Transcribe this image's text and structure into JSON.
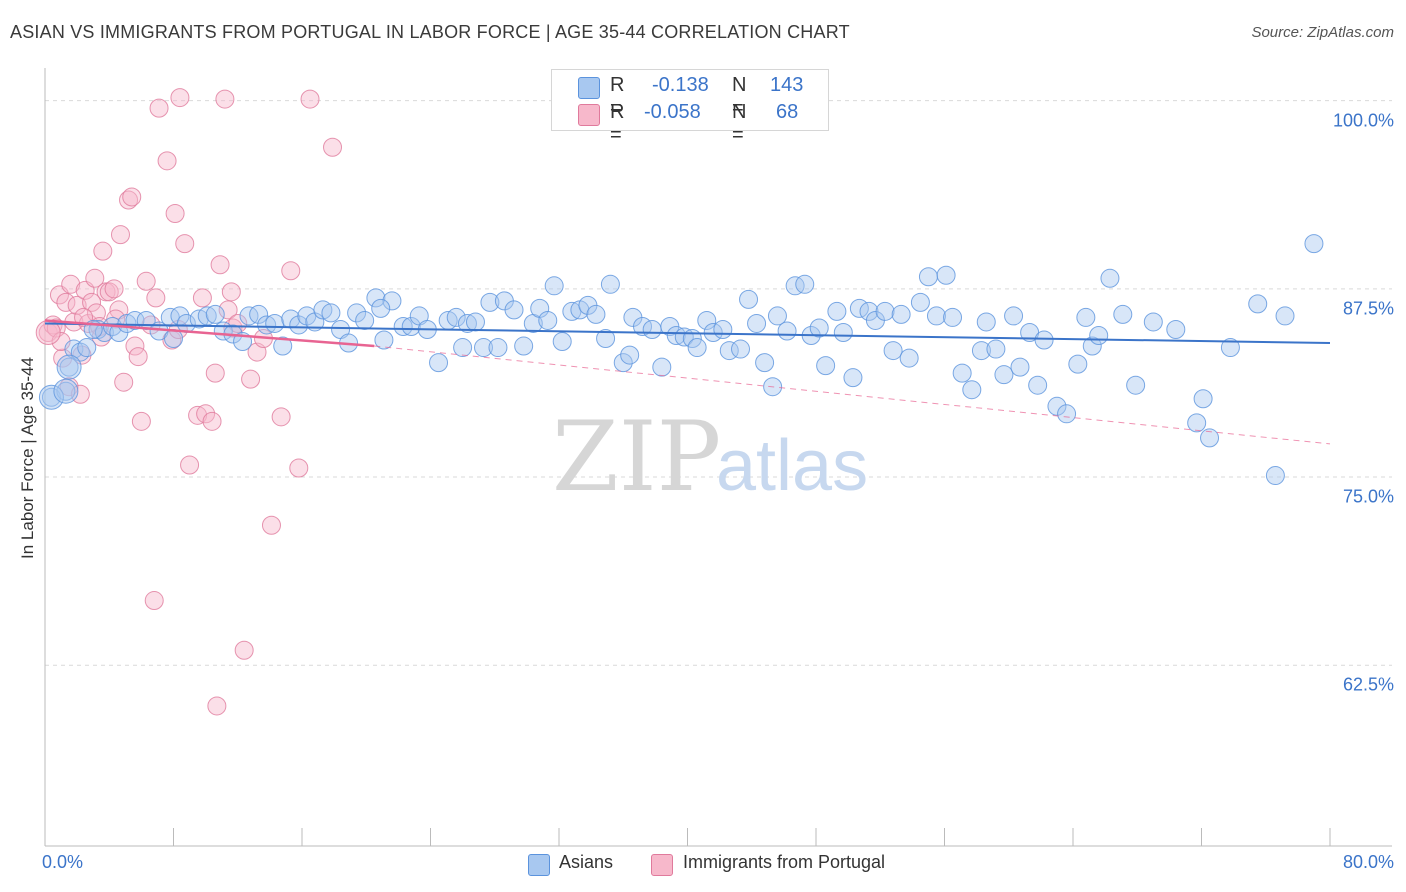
{
  "header": {
    "title": "ASIAN VS IMMIGRANTS FROM PORTUGAL IN LABOR FORCE | AGE 35-44 CORRELATION CHART",
    "source": "Source: ZipAtlas.com"
  },
  "stats_box": {
    "rows": [
      {
        "r_label": "R =",
        "r_value": "-0.138",
        "n_label": "N =",
        "n_value": "143",
        "color": "#a8c8f0"
      },
      {
        "r_label": "R =",
        "r_value": "-0.058",
        "n_label": "N =",
        "n_value": "68",
        "color": "#f7b8cb"
      }
    ]
  },
  "legend": {
    "items": [
      {
        "label": "Asians",
        "color": "#a8c8f0"
      },
      {
        "label": "Immigrants from Portugal",
        "color": "#f7b8cb"
      }
    ]
  },
  "watermark": {
    "zip": "ZIP",
    "atlas": "atlas"
  },
  "chart_data": {
    "type": "scatter",
    "title": "ASIAN VS IMMIGRANTS FROM PORTUGAL IN LABOR FORCE | AGE 35-44 CORRELATION CHART",
    "xlabel": "",
    "ylabel": "In Labor Force | Age 35-44",
    "xlim": [
      0,
      80
    ],
    "ylim": [
      50.5,
      101.5
    ],
    "x_tick_labels": [
      {
        "value": 0,
        "label": "0.0%"
      },
      {
        "value": 80,
        "label": "80.0%"
      }
    ],
    "y_tick_labels": [
      {
        "value": 100,
        "label": "100.0%"
      },
      {
        "value": 87.5,
        "label": "87.5%"
      },
      {
        "value": 75,
        "label": "75.0%"
      },
      {
        "value": 62.5,
        "label": "62.5%"
      }
    ],
    "grid": true,
    "series": [
      {
        "name": "Asians",
        "color": "#a8c8f0",
        "stroke": "#5b93dd",
        "line_color": "#3b74c9",
        "trend": {
          "x": [
            0,
            80
          ],
          "y": [
            85.2,
            83.9
          ],
          "dashed": false
        },
        "points": [
          [
            0.4,
            80.3
          ],
          [
            1.3,
            80.7
          ],
          [
            1.5,
            82.3
          ],
          [
            1.8,
            83.5
          ],
          [
            2.2,
            83.3
          ],
          [
            2.6,
            83.6
          ],
          [
            3.3,
            84.8
          ],
          [
            3.7,
            84.6
          ],
          [
            4.2,
            85.0
          ],
          [
            4.6,
            84.6
          ],
          [
            5.1,
            85.2
          ],
          [
            5.6,
            85.4
          ],
          [
            6.3,
            85.4
          ],
          [
            7.1,
            84.7
          ],
          [
            7.8,
            85.6
          ],
          [
            8.0,
            84.2
          ],
          [
            8.4,
            85.7
          ],
          [
            8.8,
            85.2
          ],
          [
            9.6,
            85.5
          ],
          [
            10.1,
            85.7
          ],
          [
            10.6,
            85.8
          ],
          [
            11.1,
            84.7
          ],
          [
            11.7,
            84.5
          ],
          [
            12.3,
            84.0
          ],
          [
            12.7,
            85.7
          ],
          [
            13.3,
            85.8
          ],
          [
            13.8,
            85.1
          ],
          [
            14.3,
            85.2
          ],
          [
            14.8,
            83.7
          ],
          [
            15.3,
            85.5
          ],
          [
            15.8,
            85.1
          ],
          [
            16.3,
            85.7
          ],
          [
            16.8,
            85.3
          ],
          [
            17.3,
            86.1
          ],
          [
            17.8,
            85.9
          ],
          [
            18.4,
            84.8
          ],
          [
            18.9,
            83.9
          ],
          [
            19.4,
            85.9
          ],
          [
            19.9,
            85.4
          ],
          [
            20.6,
            86.9
          ],
          [
            21.1,
            84.1
          ],
          [
            21.6,
            86.7
          ],
          [
            22.3,
            85.0
          ],
          [
            22.8,
            85.0
          ],
          [
            23.3,
            85.7
          ],
          [
            23.8,
            84.8
          ],
          [
            24.5,
            82.6
          ],
          [
            25.1,
            85.4
          ],
          [
            25.6,
            85.6
          ],
          [
            26.0,
            83.6
          ],
          [
            26.3,
            85.2
          ],
          [
            26.8,
            85.3
          ],
          [
            27.3,
            83.6
          ],
          [
            27.7,
            86.6
          ],
          [
            28.2,
            83.6
          ],
          [
            28.6,
            86.7
          ],
          [
            29.2,
            86.1
          ],
          [
            29.8,
            83.7
          ],
          [
            30.4,
            85.2
          ],
          [
            30.8,
            86.2
          ],
          [
            31.3,
            85.4
          ],
          [
            31.7,
            87.7
          ],
          [
            32.2,
            84.0
          ],
          [
            32.8,
            86.0
          ],
          [
            33.3,
            86.1
          ],
          [
            33.8,
            86.4
          ],
          [
            34.3,
            85.8
          ],
          [
            34.9,
            84.2
          ],
          [
            35.2,
            87.8
          ],
          [
            36.0,
            82.6
          ],
          [
            36.4,
            83.1
          ],
          [
            36.6,
            85.6
          ],
          [
            37.2,
            85.0
          ],
          [
            37.8,
            84.8
          ],
          [
            38.4,
            82.3
          ],
          [
            38.9,
            85.0
          ],
          [
            39.3,
            84.4
          ],
          [
            39.8,
            84.3
          ],
          [
            40.3,
            84.2
          ],
          [
            40.6,
            83.6
          ],
          [
            41.2,
            85.4
          ],
          [
            41.6,
            84.6
          ],
          [
            42.2,
            84.8
          ],
          [
            42.6,
            83.4
          ],
          [
            43.3,
            83.5
          ],
          [
            43.8,
            86.8
          ],
          [
            44.3,
            85.2
          ],
          [
            44.8,
            82.6
          ],
          [
            45.3,
            81.0
          ],
          [
            45.6,
            85.7
          ],
          [
            46.2,
            84.7
          ],
          [
            46.7,
            87.7
          ],
          [
            47.3,
            87.8
          ],
          [
            47.7,
            84.4
          ],
          [
            48.2,
            84.9
          ],
          [
            48.6,
            82.4
          ],
          [
            49.3,
            86.0
          ],
          [
            49.7,
            84.6
          ],
          [
            50.3,
            81.6
          ],
          [
            50.7,
            86.2
          ],
          [
            51.3,
            86.0
          ],
          [
            51.7,
            85.4
          ],
          [
            52.3,
            86.0
          ],
          [
            52.8,
            83.4
          ],
          [
            53.3,
            85.8
          ],
          [
            53.8,
            82.9
          ],
          [
            54.5,
            86.6
          ],
          [
            55.0,
            88.3
          ],
          [
            55.5,
            85.7
          ],
          [
            56.1,
            88.4
          ],
          [
            56.5,
            85.6
          ],
          [
            57.1,
            81.9
          ],
          [
            57.7,
            80.8
          ],
          [
            58.3,
            83.4
          ],
          [
            58.6,
            85.3
          ],
          [
            59.2,
            83.5
          ],
          [
            59.7,
            81.8
          ],
          [
            60.3,
            85.7
          ],
          [
            60.7,
            82.3
          ],
          [
            61.3,
            84.6
          ],
          [
            61.8,
            81.1
          ],
          [
            62.2,
            84.1
          ],
          [
            63.0,
            79.7
          ],
          [
            63.6,
            79.2
          ],
          [
            64.3,
            82.5
          ],
          [
            64.8,
            85.6
          ],
          [
            65.2,
            83.7
          ],
          [
            65.6,
            84.4
          ],
          [
            66.3,
            88.2
          ],
          [
            67.1,
            85.8
          ],
          [
            67.9,
            81.1
          ],
          [
            69.0,
            85.3
          ],
          [
            70.4,
            84.8
          ],
          [
            71.7,
            78.6
          ],
          [
            72.1,
            80.2
          ],
          [
            72.5,
            77.6
          ],
          [
            73.8,
            83.6
          ],
          [
            75.5,
            86.5
          ],
          [
            76.6,
            75.1
          ],
          [
            77.2,
            85.7
          ],
          [
            79.0,
            90.5
          ],
          [
            3.0,
            84.8
          ],
          [
            20.9,
            86.2
          ]
        ]
      },
      {
        "name": "Immigrants from Portugal",
        "color": "#f7b8cb",
        "stroke": "#e07a9c",
        "line_color": "#e86492",
        "trend": {
          "x": [
            0,
            20.5
          ],
          "y": [
            85.4,
            83.7
          ],
          "dashed": false
        },
        "trend_extension": {
          "x": [
            20.5,
            80
          ],
          "y": [
            83.7,
            77.2
          ],
          "dashed": true
        },
        "points": [
          [
            0.2,
            84.6
          ],
          [
            0.5,
            85.1
          ],
          [
            0.7,
            84.9
          ],
          [
            0.9,
            87.1
          ],
          [
            1.1,
            82.9
          ],
          [
            1.3,
            86.6
          ],
          [
            1.5,
            81.0
          ],
          [
            1.6,
            87.8
          ],
          [
            1.8,
            85.3
          ],
          [
            2.0,
            86.4
          ],
          [
            2.2,
            80.5
          ],
          [
            2.3,
            83.1
          ],
          [
            2.5,
            87.4
          ],
          [
            2.7,
            85.2
          ],
          [
            2.9,
            86.6
          ],
          [
            3.1,
            88.2
          ],
          [
            3.2,
            85.9
          ],
          [
            3.4,
            85.0
          ],
          [
            3.6,
            90.0
          ],
          [
            3.8,
            87.3
          ],
          [
            4.0,
            87.3
          ],
          [
            4.3,
            87.5
          ],
          [
            4.6,
            86.1
          ],
          [
            4.7,
            91.1
          ],
          [
            4.9,
            81.3
          ],
          [
            5.2,
            93.4
          ],
          [
            5.4,
            93.6
          ],
          [
            5.6,
            83.7
          ],
          [
            5.8,
            83.0
          ],
          [
            6.0,
            78.7
          ],
          [
            6.3,
            88.0
          ],
          [
            6.6,
            85.1
          ],
          [
            6.8,
            66.8
          ],
          [
            7.1,
            99.5
          ],
          [
            7.6,
            96.0
          ],
          [
            7.9,
            84.1
          ],
          [
            8.1,
            92.5
          ],
          [
            8.3,
            84.8
          ],
          [
            8.4,
            100.2
          ],
          [
            8.7,
            90.5
          ],
          [
            9.0,
            75.8
          ],
          [
            9.5,
            79.1
          ],
          [
            9.8,
            86.9
          ],
          [
            10.0,
            79.2
          ],
          [
            10.4,
            78.7
          ],
          [
            10.6,
            81.9
          ],
          [
            10.7,
            59.8
          ],
          [
            10.9,
            89.1
          ],
          [
            11.2,
            100.1
          ],
          [
            11.4,
            86.1
          ],
          [
            11.7,
            84.9
          ],
          [
            12.0,
            85.2
          ],
          [
            12.4,
            63.5
          ],
          [
            12.8,
            81.5
          ],
          [
            13.2,
            83.3
          ],
          [
            13.6,
            84.2
          ],
          [
            14.1,
            71.8
          ],
          [
            14.7,
            79.0
          ],
          [
            15.3,
            88.7
          ],
          [
            15.8,
            75.6
          ],
          [
            16.5,
            100.1
          ],
          [
            17.9,
            96.9
          ],
          [
            2.4,
            85.6
          ],
          [
            3.5,
            84.3
          ],
          [
            4.4,
            85.5
          ],
          [
            6.9,
            86.9
          ],
          [
            11.6,
            87.3
          ],
          [
            1.0,
            84.0
          ]
        ]
      }
    ]
  }
}
